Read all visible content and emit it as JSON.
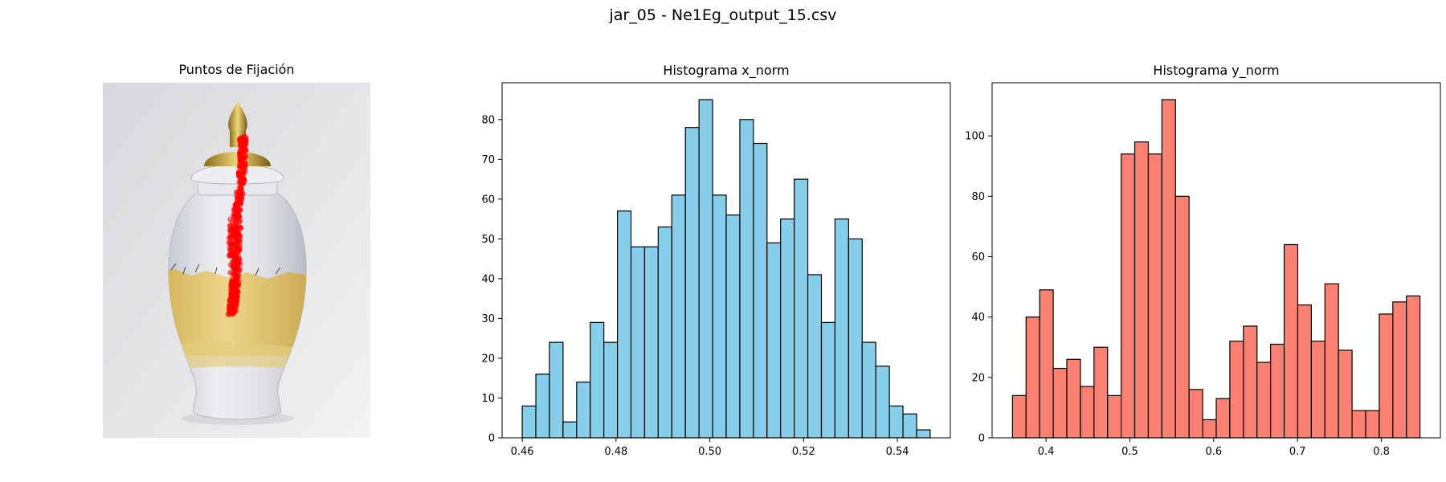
{
  "figure": {
    "suptitle": "jar_05 - Ne1Eg_output_15.csv"
  },
  "image_panel": {
    "title": "Puntos de Fijación",
    "background_color": "#e4e4e8",
    "jar_body_color": "#dcdde3",
    "gold_color": "#d9be62",
    "fixation_color": "#ff0000"
  },
  "chart_data": [
    {
      "type": "bar",
      "title": "Histograma x_norm",
      "xlabel": "",
      "ylabel": "",
      "color": "#87ceeb",
      "edgecolor": "#000000",
      "bin_edges": [
        0.46,
        0.4629,
        0.4658,
        0.4687,
        0.4716,
        0.4745,
        0.4774,
        0.4803,
        0.4832,
        0.4861,
        0.489,
        0.4919,
        0.4948,
        0.4977,
        0.5006,
        0.5035,
        0.5064,
        0.5093,
        0.5122,
        0.5151,
        0.518,
        0.5209,
        0.5238,
        0.5267,
        0.5296,
        0.5325,
        0.5354,
        0.5383,
        0.5412,
        0.5441,
        0.547
      ],
      "values": [
        8,
        16,
        24,
        4,
        14,
        29,
        24,
        57,
        48,
        48,
        53,
        61,
        78,
        85,
        61,
        56,
        80,
        74,
        49,
        55,
        65,
        41,
        29,
        55,
        50,
        24,
        18,
        8,
        6,
        2
      ],
      "xlim": [
        0.4557,
        0.5513
      ],
      "ylim": [
        0,
        89.25
      ],
      "xticks": [
        0.46,
        0.48,
        0.5,
        0.52,
        0.54
      ],
      "xticklabels": [
        "0.46",
        "0.48",
        "0.50",
        "0.52",
        "0.54"
      ],
      "yticks": [
        0,
        10,
        20,
        30,
        40,
        50,
        60,
        70,
        80
      ],
      "yticklabels": [
        "0",
        "10",
        "20",
        "30",
        "40",
        "50",
        "60",
        "70",
        "80"
      ],
      "grid": false
    },
    {
      "type": "bar",
      "title": "Histograma y_norm",
      "xlabel": "",
      "ylabel": "",
      "color": "#fa8072",
      "edgecolor": "#000000",
      "bin_edges": [
        0.36,
        0.3762,
        0.3924,
        0.4086,
        0.4248,
        0.441,
        0.4572,
        0.4734,
        0.4896,
        0.5058,
        0.522,
        0.5382,
        0.5544,
        0.5706,
        0.5868,
        0.603,
        0.6192,
        0.6354,
        0.6516,
        0.6678,
        0.684,
        0.7002,
        0.7164,
        0.7326,
        0.7488,
        0.765,
        0.7812,
        0.7974,
        0.8136,
        0.8298,
        0.846
      ],
      "values": [
        14,
        40,
        49,
        23,
        26,
        17,
        30,
        14,
        94,
        98,
        94,
        112,
        80,
        16,
        6,
        13,
        32,
        37,
        25,
        31,
        64,
        44,
        32,
        51,
        29,
        9,
        9,
        41,
        45,
        47
      ],
      "xlim": [
        0.3357,
        0.8703
      ],
      "ylim": [
        0,
        117.6
      ],
      "xticks": [
        0.4,
        0.5,
        0.6,
        0.7,
        0.8
      ],
      "xticklabels": [
        "0.4",
        "0.5",
        "0.6",
        "0.7",
        "0.8"
      ],
      "yticks": [
        0,
        20,
        40,
        60,
        80,
        100
      ],
      "yticklabels": [
        "0",
        "20",
        "40",
        "60",
        "80",
        "100"
      ],
      "grid": false
    }
  ]
}
